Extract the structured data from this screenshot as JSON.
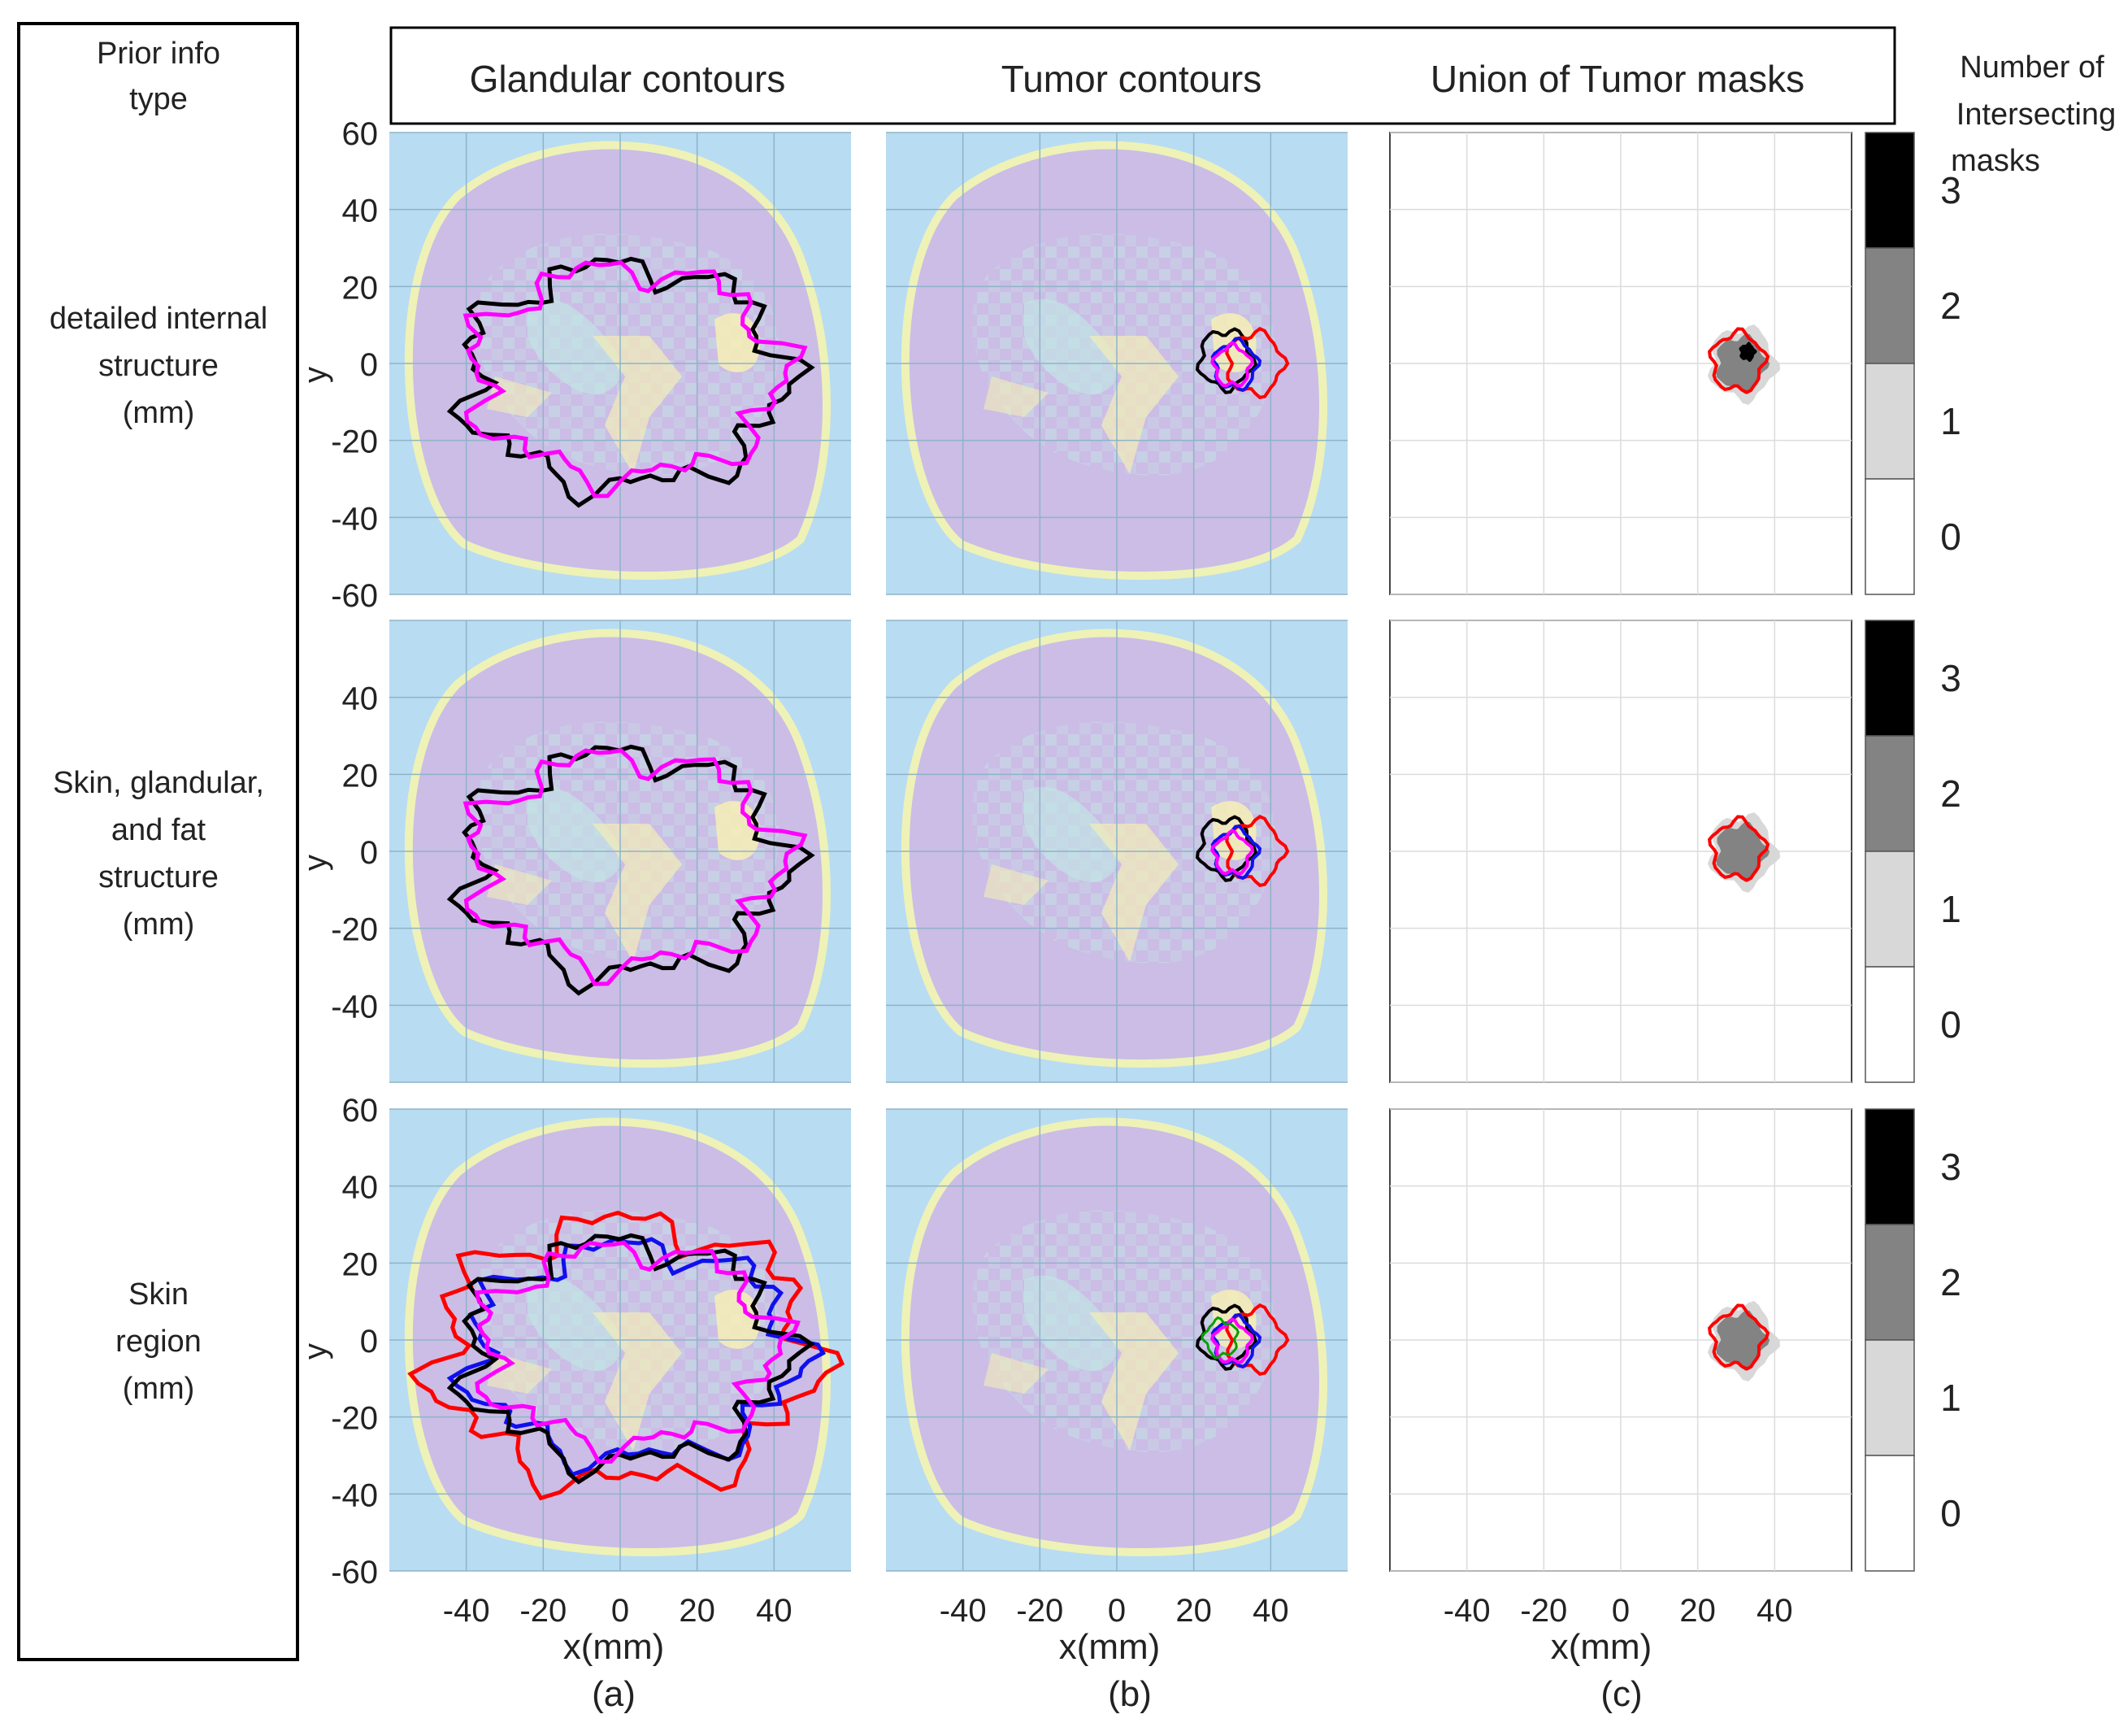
{
  "figure": {
    "row_header_title": "Prior info type",
    "column_titles": [
      "Glandular contours",
      "Tumor contours",
      "Union of Tumor masks"
    ],
    "colorbar_title": [
      "Number of",
      "Intersecting",
      "masks"
    ],
    "colorbar_levels": [
      "3",
      "2",
      "1",
      "0"
    ],
    "colorbar_colors": [
      "#000000",
      "#838383",
      "#d8d8d8",
      "#ffffff"
    ],
    "row_labels": [
      [
        "detailed internal",
        "structure",
        "(mm)"
      ],
      [
        "Skin, glandular,",
        "and fat",
        "structure",
        "(mm)"
      ],
      [
        "Skin",
        "region",
        "(mm)"
      ]
    ],
    "ylabel": "y",
    "xlabel": "x(mm)",
    "panel_letters": [
      "(a)",
      "(b)",
      "(c)"
    ],
    "colors": {
      "background": "#b8dcf2",
      "breast": "#cbbde6",
      "skin_ring": "#eef2b6",
      "glandular": "#c2e8e4",
      "fat_dense": "#f4ecb8",
      "contour_pink": "#ff00ff",
      "contour_black": "#000000",
      "contour_red": "#ff0000",
      "contour_blue": "#1010ee",
      "contour_green": "#00a000"
    }
  },
  "chart_data": {
    "type": "image-grid",
    "x_ticks": [
      -40,
      -20,
      0,
      20,
      40
    ],
    "y_ticks": [
      60,
      40,
      20,
      0,
      -20,
      -40,
      -60
    ],
    "y_tick_labels_row": [
      [
        "60",
        "40",
        "20",
        "0",
        "-20",
        "-40",
        "-60"
      ],
      [
        "40",
        "20",
        "0",
        "-20",
        "-40"
      ],
      [
        "60",
        "40",
        "20",
        "0",
        "-20",
        "-40",
        "-60"
      ]
    ],
    "x_tick_labels": [
      "-40",
      "-20",
      "0",
      "20",
      "40"
    ],
    "xlim": [
      -60,
      60
    ],
    "ylim": [
      -60,
      60
    ],
    "tumor_center_mm": [
      30,
      0
    ]
  }
}
